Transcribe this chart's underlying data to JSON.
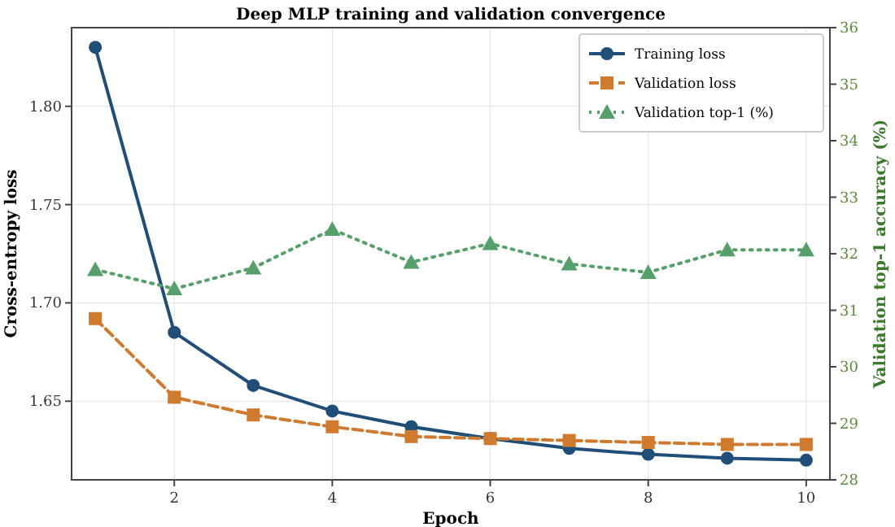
{
  "chart_data": {
    "type": "line",
    "title": "Deep MLP training and validation convergence",
    "xlabel": "Epoch",
    "ylabel": "Cross-entropy loss",
    "y2label": "Validation top-1 accuracy (%)",
    "x": [
      1,
      2,
      3,
      4,
      5,
      6,
      7,
      8,
      9,
      10
    ],
    "xlim": [
      0.7,
      10.3
    ],
    "xticks": [
      2,
      4,
      6,
      8,
      10
    ],
    "ylim": [
      1.61,
      1.84
    ],
    "yticks": [
      {
        "value": 1.65,
        "label": "1.65"
      },
      {
        "value": 1.7,
        "label": "1.70"
      },
      {
        "value": 1.75,
        "label": "1.75"
      },
      {
        "value": 1.8,
        "label": "1.80"
      }
    ],
    "y2lim": [
      28,
      36
    ],
    "y2ticks": [
      28,
      29,
      30,
      31,
      32,
      33,
      34,
      35,
      36
    ],
    "grid": true,
    "legend": "top right",
    "series": [
      {
        "name": "Training loss",
        "color": "#1f4e79",
        "marker": "circle",
        "line_style": "solid",
        "values": [
          1.83,
          1.685,
          1.658,
          1.645,
          1.637,
          1.631,
          1.626,
          1.623,
          1.621,
          1.62
        ]
      },
      {
        "name": "Validation loss",
        "color": "#d07a2e",
        "marker": "square",
        "line_style": "dashed",
        "values": [
          1.692,
          1.652,
          1.643,
          1.637,
          1.632,
          1.631,
          1.63,
          1.629,
          1.628,
          1.628
        ]
      },
      {
        "name": "Validation top-1 (%)",
        "color": "#55a06a",
        "marker": "triangle",
        "line_style": "dotted",
        "axis": "y2",
        "values": [
          31.72,
          31.38,
          31.75,
          32.43,
          31.85,
          32.18,
          31.82,
          31.67,
          32.07,
          32.07
        ]
      }
    ]
  }
}
